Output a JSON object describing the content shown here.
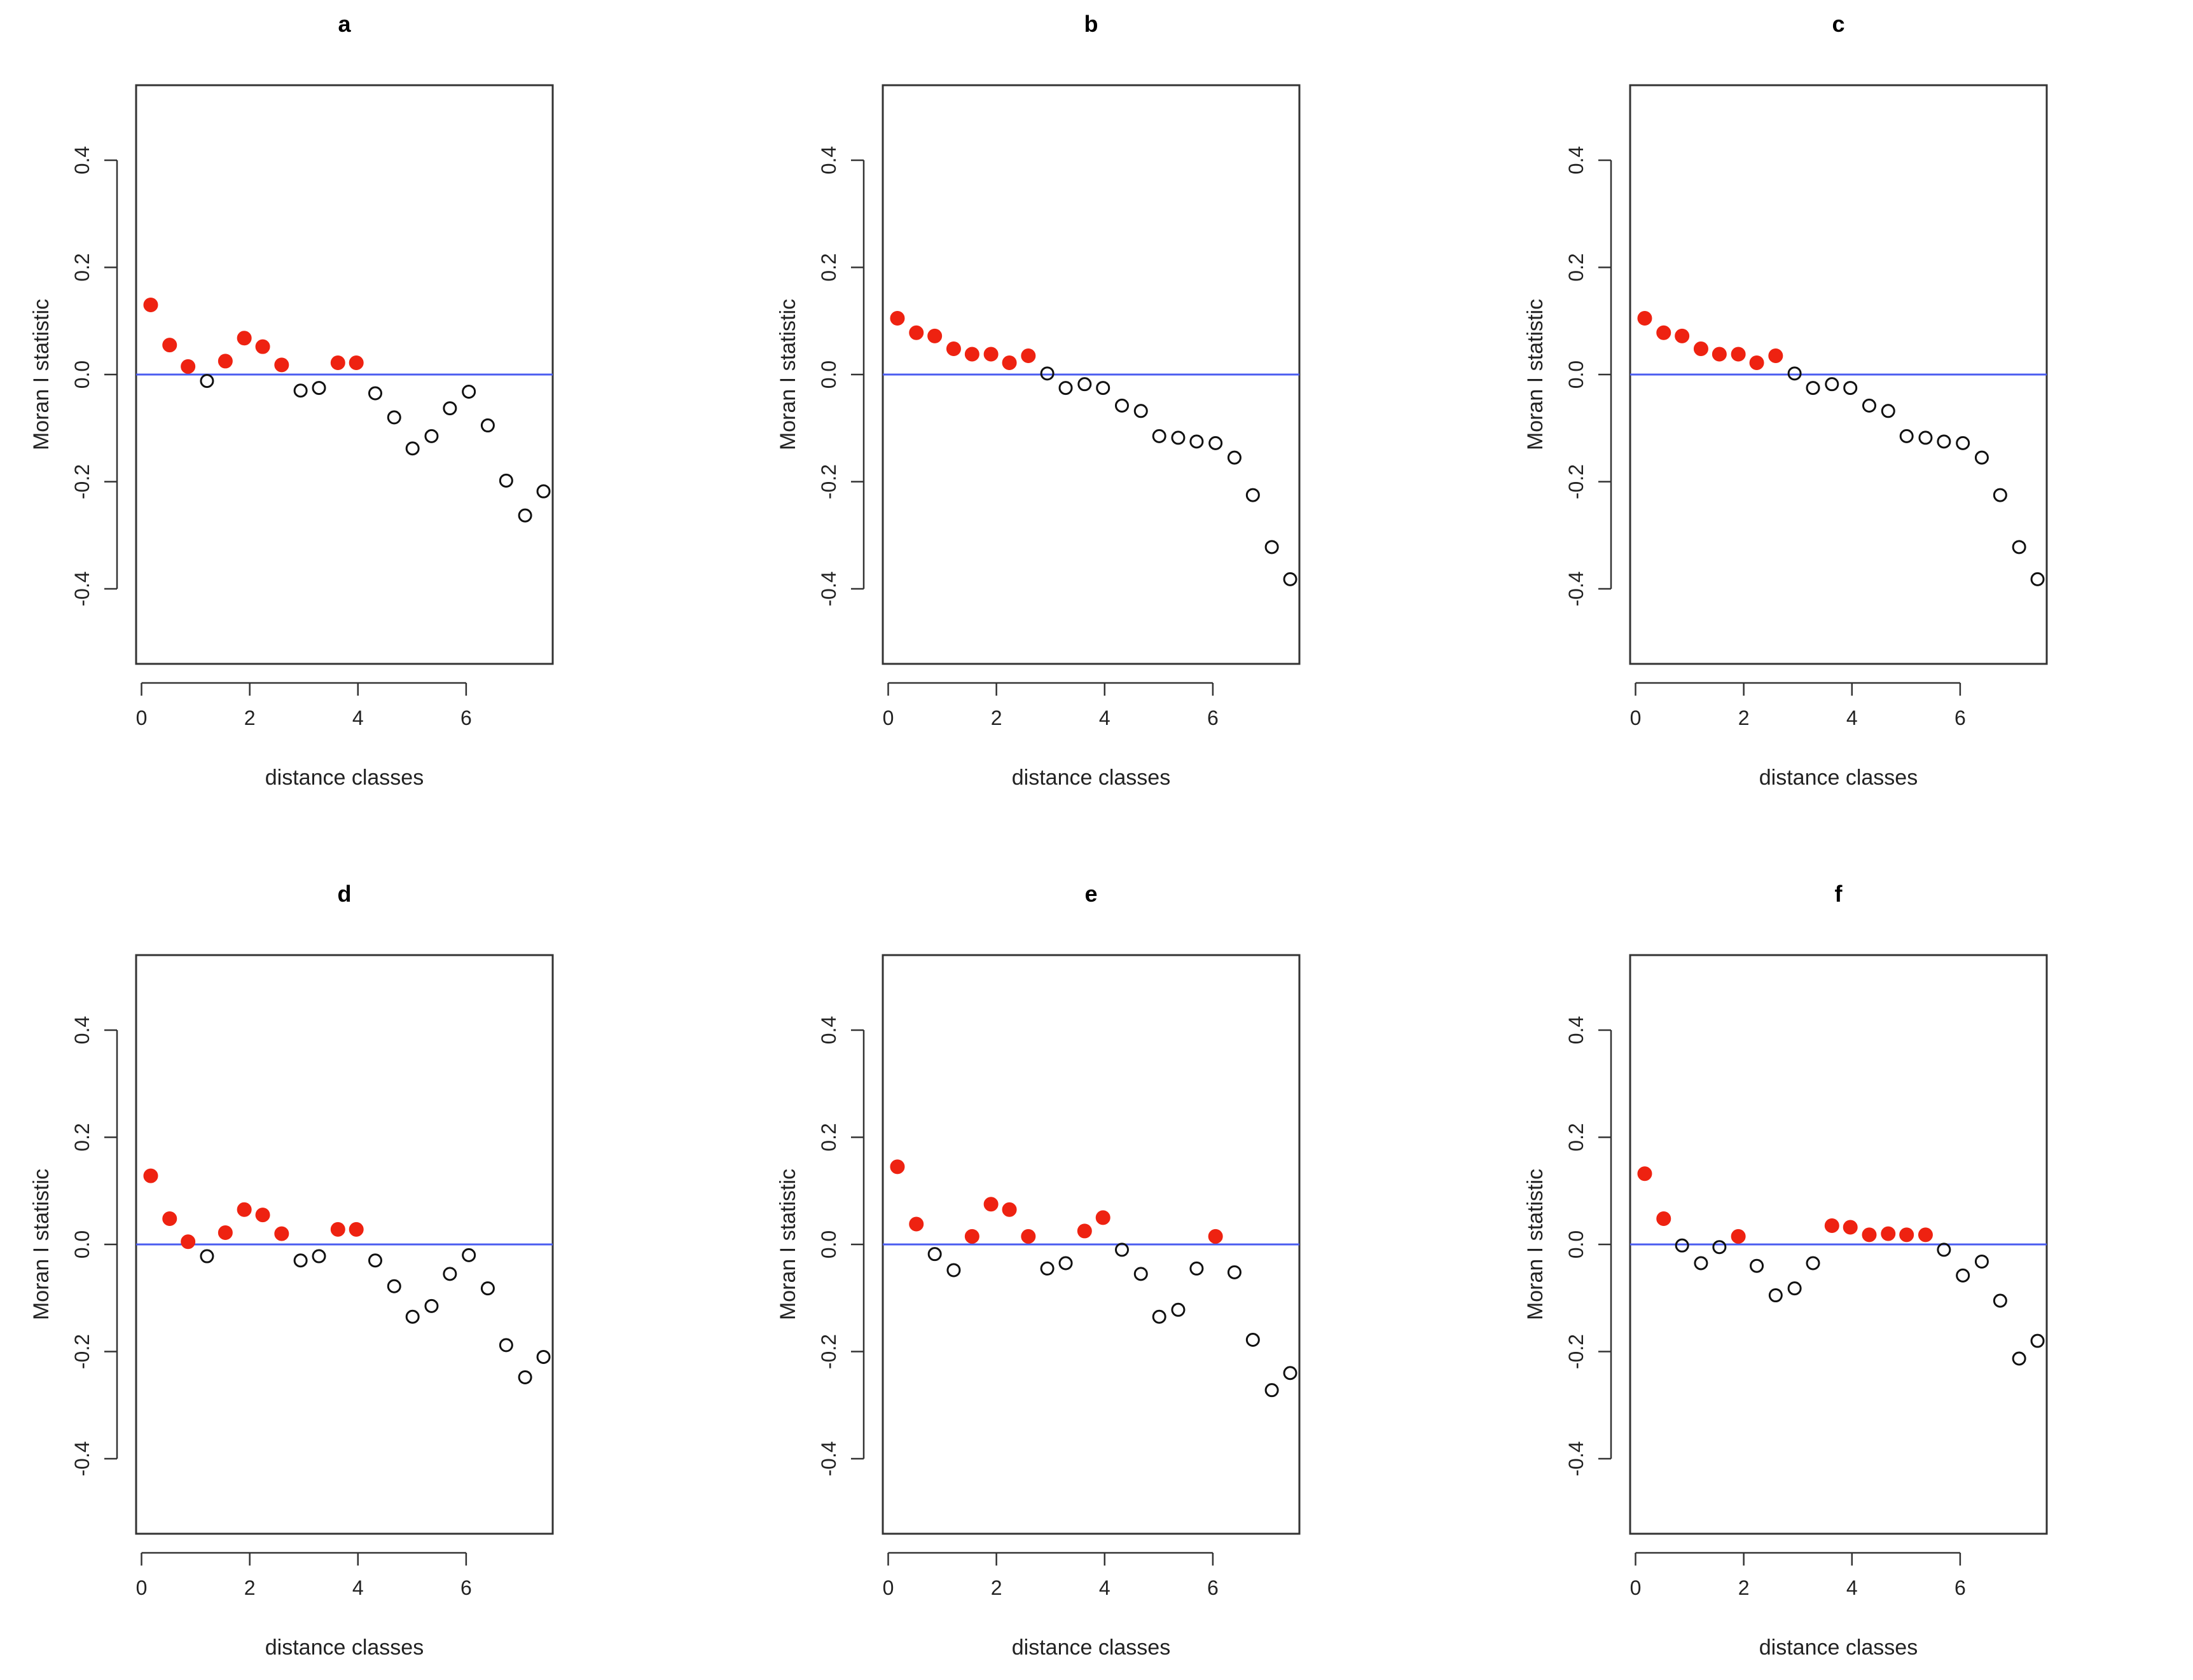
{
  "chart_data": [
    {
      "type": "scatter",
      "title": "a",
      "xlabel": "distance classes",
      "ylabel": "Moran I statistic",
      "xlim": [
        -0.1,
        7.6
      ],
      "ylim": [
        -0.54,
        0.54
      ],
      "xticks": [
        0,
        2,
        4,
        6
      ],
      "yticks": [
        -0.4,
        -0.2,
        0.0,
        0.2,
        0.4
      ],
      "reference_line": {
        "y": 0,
        "color": "#4a5cf0"
      },
      "significant_color": "#ee2211",
      "x": [
        0.17,
        0.52,
        0.86,
        1.21,
        1.55,
        1.9,
        2.24,
        2.59,
        2.94,
        3.28,
        3.63,
        3.97,
        4.32,
        4.67,
        5.01,
        5.36,
        5.7,
        6.05,
        6.4,
        6.74,
        7.09,
        7.43
      ],
      "y": [
        0.13,
        0.055,
        0.015,
        -0.012,
        0.025,
        0.068,
        0.052,
        0.018,
        -0.03,
        -0.025,
        0.022,
        0.022,
        -0.035,
        -0.08,
        -0.138,
        -0.115,
        -0.063,
        -0.032,
        -0.095,
        -0.198,
        -0.263,
        -0.218
      ],
      "significant": [
        true,
        true,
        true,
        false,
        true,
        true,
        true,
        true,
        false,
        false,
        true,
        true,
        false,
        false,
        false,
        false,
        false,
        false,
        false,
        false,
        false,
        false
      ]
    },
    {
      "type": "scatter",
      "title": "b",
      "xlabel": "distance classes",
      "ylabel": "Moran I statistic",
      "xlim": [
        -0.1,
        7.6
      ],
      "ylim": [
        -0.54,
        0.54
      ],
      "xticks": [
        0,
        2,
        4,
        6
      ],
      "yticks": [
        -0.4,
        -0.2,
        0.0,
        0.2,
        0.4
      ],
      "reference_line": {
        "y": 0,
        "color": "#4a5cf0"
      },
      "significant_color": "#ee2211",
      "x": [
        0.17,
        0.52,
        0.86,
        1.21,
        1.55,
        1.9,
        2.24,
        2.59,
        2.94,
        3.28,
        3.63,
        3.97,
        4.32,
        4.67,
        5.01,
        5.36,
        5.7,
        6.05,
        6.4,
        6.74,
        7.09,
        7.43
      ],
      "y": [
        0.105,
        0.078,
        0.072,
        0.048,
        0.038,
        0.038,
        0.022,
        0.035,
        0.002,
        -0.025,
        -0.018,
        -0.025,
        -0.058,
        -0.068,
        -0.115,
        -0.118,
        -0.125,
        -0.128,
        -0.155,
        -0.225,
        -0.322,
        -0.382
      ],
      "significant": [
        true,
        true,
        true,
        true,
        true,
        true,
        true,
        true,
        false,
        false,
        false,
        false,
        false,
        false,
        false,
        false,
        false,
        false,
        false,
        false,
        false,
        false
      ]
    },
    {
      "type": "scatter",
      "title": "c",
      "xlabel": "distance classes",
      "ylabel": "Moran I statistic",
      "xlim": [
        -0.1,
        7.6
      ],
      "ylim": [
        -0.54,
        0.54
      ],
      "xticks": [
        0,
        2,
        4,
        6
      ],
      "yticks": [
        -0.4,
        -0.2,
        0.0,
        0.2,
        0.4
      ],
      "reference_line": {
        "y": 0,
        "color": "#4a5cf0"
      },
      "significant_color": "#ee2211",
      "x": [
        0.17,
        0.52,
        0.86,
        1.21,
        1.55,
        1.9,
        2.24,
        2.59,
        2.94,
        3.28,
        3.63,
        3.97,
        4.32,
        4.67,
        5.01,
        5.36,
        5.7,
        6.05,
        6.4,
        6.74,
        7.09,
        7.43
      ],
      "y": [
        0.105,
        0.078,
        0.072,
        0.048,
        0.038,
        0.038,
        0.022,
        0.035,
        0.002,
        -0.025,
        -0.018,
        -0.025,
        -0.058,
        -0.068,
        -0.115,
        -0.118,
        -0.125,
        -0.128,
        -0.155,
        -0.225,
        -0.322,
        -0.382
      ],
      "significant": [
        true,
        true,
        true,
        true,
        true,
        true,
        true,
        true,
        false,
        false,
        false,
        false,
        false,
        false,
        false,
        false,
        false,
        false,
        false,
        false,
        false,
        false
      ]
    },
    {
      "type": "scatter",
      "title": "d",
      "xlabel": "distance classes",
      "ylabel": "Moran I statistic",
      "xlim": [
        -0.1,
        7.6
      ],
      "ylim": [
        -0.54,
        0.54
      ],
      "xticks": [
        0,
        2,
        4,
        6
      ],
      "yticks": [
        -0.4,
        -0.2,
        0.0,
        0.2,
        0.4
      ],
      "reference_line": {
        "y": 0,
        "color": "#4a5cf0"
      },
      "significant_color": "#ee2211",
      "x": [
        0.17,
        0.52,
        0.86,
        1.21,
        1.55,
        1.9,
        2.24,
        2.59,
        2.94,
        3.28,
        3.63,
        3.97,
        4.32,
        4.67,
        5.01,
        5.36,
        5.7,
        6.05,
        6.4,
        6.74,
        7.09,
        7.43
      ],
      "y": [
        0.128,
        0.048,
        0.005,
        -0.022,
        0.022,
        0.065,
        0.055,
        0.02,
        -0.03,
        -0.022,
        0.028,
        0.028,
        -0.03,
        -0.078,
        -0.135,
        -0.115,
        -0.055,
        -0.02,
        -0.082,
        -0.188,
        -0.248,
        -0.21
      ],
      "significant": [
        true,
        true,
        true,
        false,
        true,
        true,
        true,
        true,
        false,
        false,
        true,
        true,
        false,
        false,
        false,
        false,
        false,
        false,
        false,
        false,
        false,
        false
      ]
    },
    {
      "type": "scatter",
      "title": "e",
      "xlabel": "distance classes",
      "ylabel": "Moran I statistic",
      "xlim": [
        -0.1,
        7.6
      ],
      "ylim": [
        -0.54,
        0.54
      ],
      "xticks": [
        0,
        2,
        4,
        6
      ],
      "yticks": [
        -0.4,
        -0.2,
        0.0,
        0.2,
        0.4
      ],
      "reference_line": {
        "y": 0,
        "color": "#4a5cf0"
      },
      "significant_color": "#ee2211",
      "x": [
        0.17,
        0.52,
        0.86,
        1.21,
        1.55,
        1.9,
        2.24,
        2.59,
        2.94,
        3.28,
        3.63,
        3.97,
        4.32,
        4.67,
        5.01,
        5.36,
        5.7,
        6.05,
        6.4,
        6.74,
        7.09,
        7.43
      ],
      "y": [
        0.145,
        0.038,
        -0.018,
        -0.048,
        0.015,
        0.075,
        0.065,
        0.015,
        -0.045,
        -0.035,
        0.025,
        0.05,
        -0.01,
        -0.055,
        -0.135,
        -0.122,
        -0.045,
        0.015,
        -0.052,
        -0.178,
        -0.272,
        -0.24
      ],
      "significant": [
        true,
        true,
        false,
        false,
        true,
        true,
        true,
        true,
        false,
        false,
        true,
        true,
        false,
        false,
        false,
        false,
        false,
        true,
        false,
        false,
        false,
        false
      ]
    },
    {
      "type": "scatter",
      "title": "f",
      "xlabel": "distance classes",
      "ylabel": "Moran I statistic",
      "xlim": [
        -0.1,
        7.6
      ],
      "ylim": [
        -0.54,
        0.54
      ],
      "xticks": [
        0,
        2,
        4,
        6
      ],
      "yticks": [
        -0.4,
        -0.2,
        0.0,
        0.2,
        0.4
      ],
      "reference_line": {
        "y": 0,
        "color": "#4a5cf0"
      },
      "significant_color": "#ee2211",
      "x": [
        0.17,
        0.52,
        0.86,
        1.21,
        1.55,
        1.9,
        2.24,
        2.59,
        2.94,
        3.28,
        3.63,
        3.97,
        4.32,
        4.67,
        5.01,
        5.36,
        5.7,
        6.05,
        6.4,
        6.74,
        7.09,
        7.43
      ],
      "y": [
        0.132,
        0.048,
        -0.002,
        -0.035,
        -0.005,
        0.015,
        -0.04,
        -0.095,
        -0.082,
        -0.035,
        0.035,
        0.032,
        0.018,
        0.02,
        0.018,
        0.018,
        -0.01,
        -0.058,
        -0.032,
        -0.105,
        -0.213,
        -0.18
      ],
      "significant": [
        true,
        true,
        false,
        false,
        false,
        true,
        false,
        false,
        false,
        false,
        true,
        true,
        true,
        true,
        true,
        true,
        false,
        false,
        false,
        false,
        false,
        false
      ]
    }
  ]
}
